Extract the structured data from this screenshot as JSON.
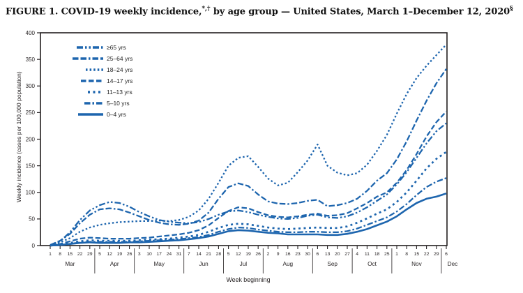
{
  "title": {
    "prefix": "FIGURE 1. COVID-19 weekly incidence,",
    "sup1": "*,†",
    "mid": " by age group — United States, March 1–December 12, 2020",
    "sup2": "§"
  },
  "colors": {
    "line_blue": "#1d65ae",
    "axis": "#231f20",
    "text": "#231f20",
    "background": "#ffffff"
  },
  "chart_data": {
    "type": "line",
    "title": "FIGURE 1. COVID-19 weekly incidence, by age group — United States, March 1–December 12, 2020",
    "xlabel": "Week beginning",
    "ylabel": "Weekly incidence (cases per 100,000 population)",
    "ylim": [
      0,
      400
    ],
    "yticks": [
      0,
      50,
      100,
      150,
      200,
      250,
      300,
      350,
      400
    ],
    "grid": false,
    "legend_position": "top-left-inside",
    "week_labels": [
      "1",
      "8",
      "15",
      "22",
      "29",
      "5",
      "12",
      "19",
      "26",
      "3",
      "10",
      "17",
      "24",
      "31",
      "7",
      "14",
      "21",
      "28",
      "5",
      "12",
      "19",
      "26",
      "2",
      "9",
      "16",
      "23",
      "30",
      "6",
      "13",
      "20",
      "27",
      "4",
      "11",
      "18",
      "25",
      "1",
      "8",
      "15",
      "22",
      "29",
      "6"
    ],
    "months": [
      {
        "label": "Mar",
        "start": 0,
        "end": 4
      },
      {
        "label": "Apr",
        "start": 5,
        "end": 8
      },
      {
        "label": "May",
        "start": 9,
        "end": 13
      },
      {
        "label": "Jun",
        "start": 14,
        "end": 17
      },
      {
        "label": "Jul",
        "start": 18,
        "end": 21
      },
      {
        "label": "Aug",
        "start": 22,
        "end": 26
      },
      {
        "label": "Sep",
        "start": 27,
        "end": 30
      },
      {
        "label": "Oct",
        "start": 31,
        "end": 34
      },
      {
        "label": "Nov",
        "start": 35,
        "end": 39
      },
      {
        "label": "Dec",
        "start": 40,
        "end": 40
      }
    ],
    "series": [
      {
        "name": "≥65 yrs",
        "style": "dash-dot-dot",
        "values": [
          1,
          8,
          25,
          48,
          66,
          76,
          82,
          80,
          73,
          63,
          55,
          48,
          45,
          43,
          42,
          44,
          50,
          58,
          64,
          66,
          63,
          58,
          54,
          51,
          50,
          52,
          56,
          58,
          53,
          52,
          55,
          62,
          72,
          84,
          96,
          115,
          138,
          165,
          192,
          215,
          230
        ]
      },
      {
        "name": "25–64 yrs",
        "style": "dash-dash-dot",
        "values": [
          1,
          9,
          22,
          42,
          58,
          68,
          70,
          68,
          62,
          55,
          48,
          43,
          40,
          39,
          41,
          47,
          62,
          88,
          110,
          117,
          112,
          96,
          83,
          79,
          78,
          80,
          84,
          86,
          74,
          76,
          80,
          88,
          103,
          122,
          136,
          162,
          196,
          235,
          272,
          305,
          332
        ]
      },
      {
        "name": "18–24 yrs",
        "style": "dotted",
        "values": [
          1,
          6,
          14,
          26,
          34,
          39,
          42,
          44,
          45,
          46,
          46,
          47,
          46,
          48,
          54,
          66,
          88,
          118,
          150,
          165,
          168,
          148,
          126,
          113,
          118,
          138,
          160,
          190,
          150,
          137,
          132,
          136,
          152,
          178,
          208,
          248,
          285,
          315,
          338,
          358,
          378
        ]
      },
      {
        "name": "14–17 yrs",
        "style": "dash",
        "values": [
          0,
          3,
          8,
          13,
          15,
          14,
          13,
          13,
          13,
          14,
          15,
          17,
          19,
          21,
          24,
          29,
          38,
          52,
          65,
          72,
          70,
          63,
          57,
          54,
          53,
          55,
          58,
          60,
          56,
          57,
          61,
          70,
          80,
          92,
          100,
          118,
          142,
          172,
          205,
          232,
          252
        ]
      },
      {
        "name": "11–13 yrs",
        "style": "short-dash",
        "values": [
          0,
          2,
          5,
          8,
          10,
          9,
          9,
          9,
          9,
          10,
          11,
          12,
          13,
          15,
          17,
          20,
          26,
          33,
          39,
          41,
          40,
          37,
          34,
          32,
          31,
          32,
          33,
          34,
          33,
          33,
          36,
          43,
          51,
          60,
          68,
          82,
          100,
          122,
          145,
          163,
          176
        ]
      },
      {
        "name": "5–10 yrs",
        "style": "dash-dot",
        "values": [
          0,
          1,
          3,
          6,
          7,
          7,
          7,
          7,
          7,
          8,
          9,
          10,
          11,
          12,
          14,
          16,
          20,
          26,
          31,
          34,
          33,
          30,
          28,
          26,
          25,
          25,
          26,
          26,
          25,
          25,
          27,
          32,
          39,
          46,
          53,
          64,
          78,
          95,
          110,
          120,
          127
        ]
      },
      {
        "name": "0–4 yrs",
        "style": "solid",
        "values": [
          0,
          1,
          3,
          5,
          6,
          5,
          5,
          5,
          6,
          6,
          7,
          8,
          9,
          10,
          12,
          14,
          17,
          22,
          27,
          29,
          28,
          26,
          24,
          23,
          21,
          21,
          21,
          21,
          20,
          20,
          22,
          26,
          31,
          38,
          45,
          55,
          68,
          80,
          88,
          92,
          98
        ]
      }
    ]
  }
}
